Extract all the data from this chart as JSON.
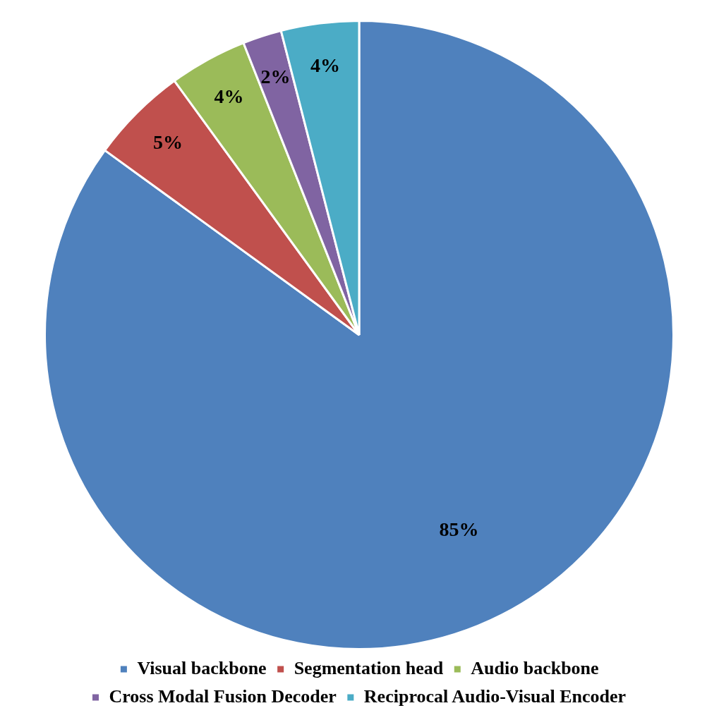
{
  "chart_data": {
    "type": "pie",
    "categories": [
      "Visual backbone",
      "Segmentation head",
      "Audio backbone",
      "Cross Modal Fusion Decoder",
      "Reciprocal Audio-Visual Encoder"
    ],
    "values": [
      85,
      5,
      4,
      2,
      4
    ],
    "colors": [
      "#4f81bd",
      "#c0504d",
      "#9bbb59",
      "#8064a2",
      "#4bacc6"
    ],
    "value_labels": [
      "85%",
      "5%",
      "4%",
      "2%",
      "4%"
    ],
    "legend": "bottom"
  }
}
